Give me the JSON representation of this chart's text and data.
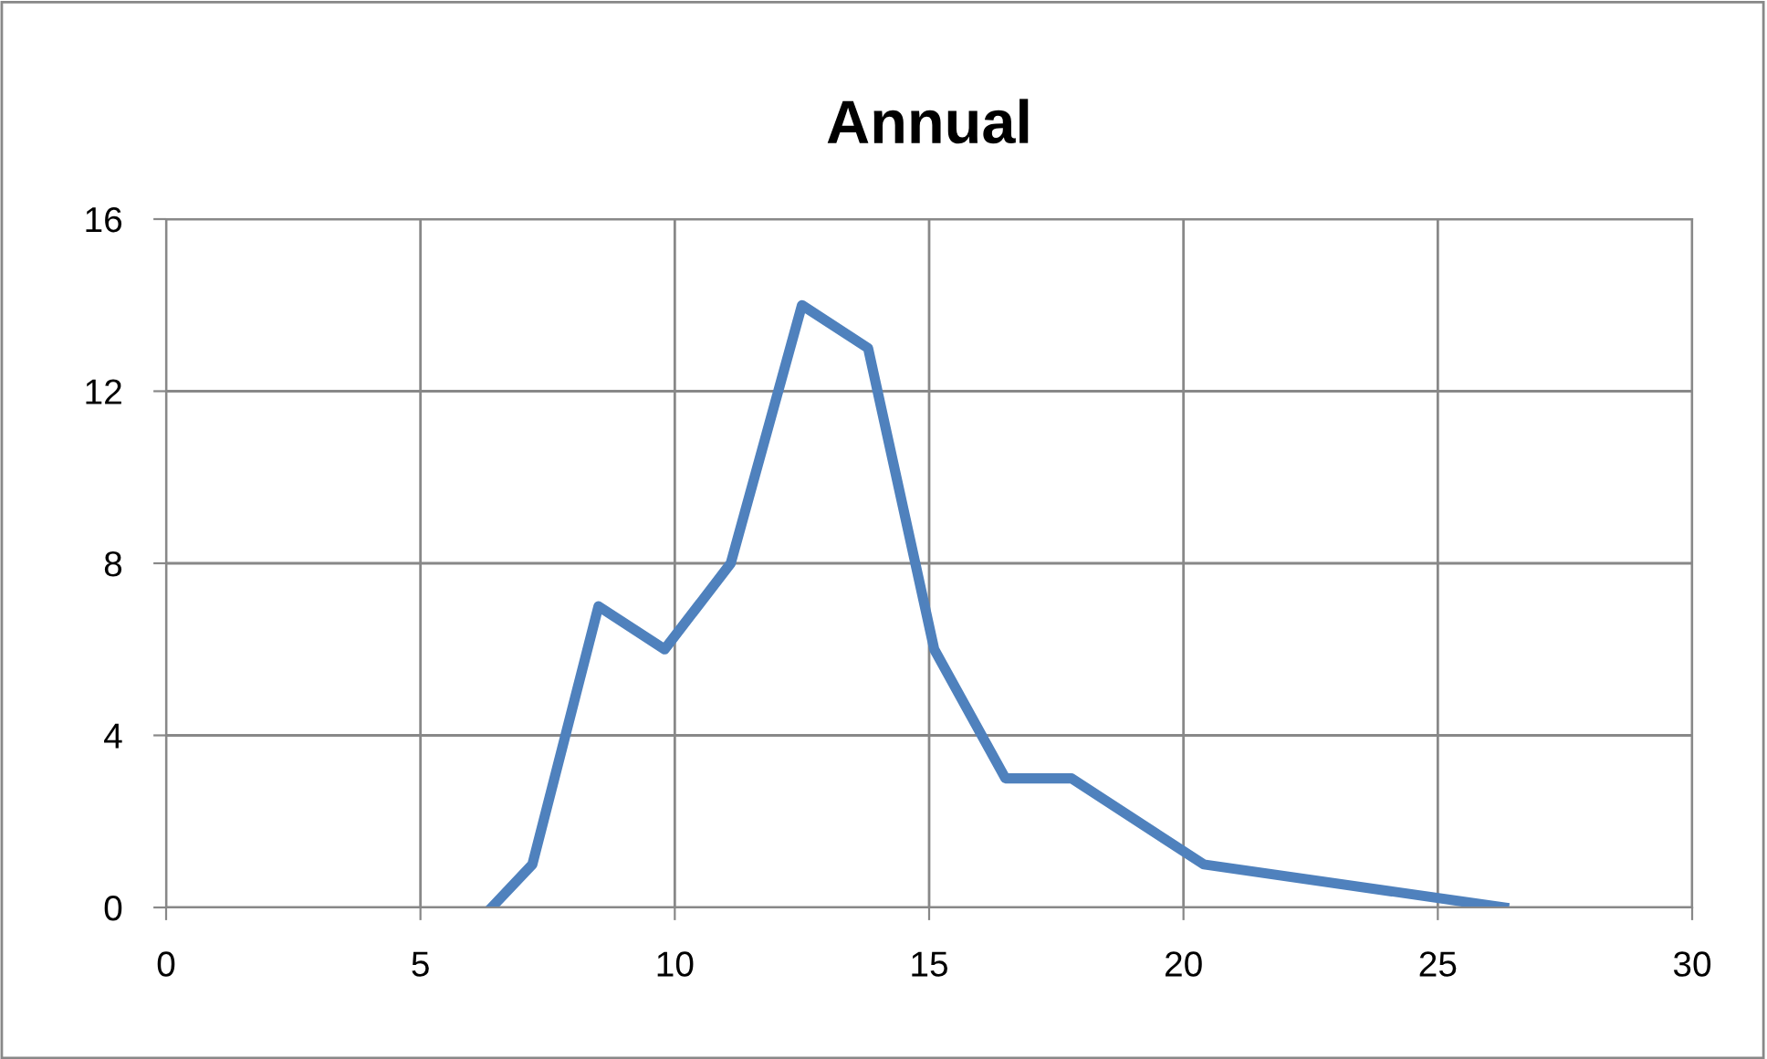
{
  "chart_data": {
    "type": "line",
    "title": "Annual",
    "x": [
      6.4,
      7.2,
      8.5,
      9.8,
      11.1,
      12.5,
      13.8,
      15.1,
      16.5,
      17.8,
      20.4,
      26.3
    ],
    "series": [
      {
        "color": "#4f81bd",
        "values": [
          0,
          1,
          7,
          6,
          8,
          14,
          13,
          6,
          3,
          3,
          1,
          0
        ]
      }
    ],
    "xlim": [
      0,
      30
    ],
    "xticks": [
      0,
      5,
      10,
      15,
      20,
      25,
      30
    ],
    "ylim": [
      0,
      16
    ],
    "yticks": [
      0,
      4,
      8,
      12,
      16
    ],
    "grid": true,
    "legend": false
  }
}
